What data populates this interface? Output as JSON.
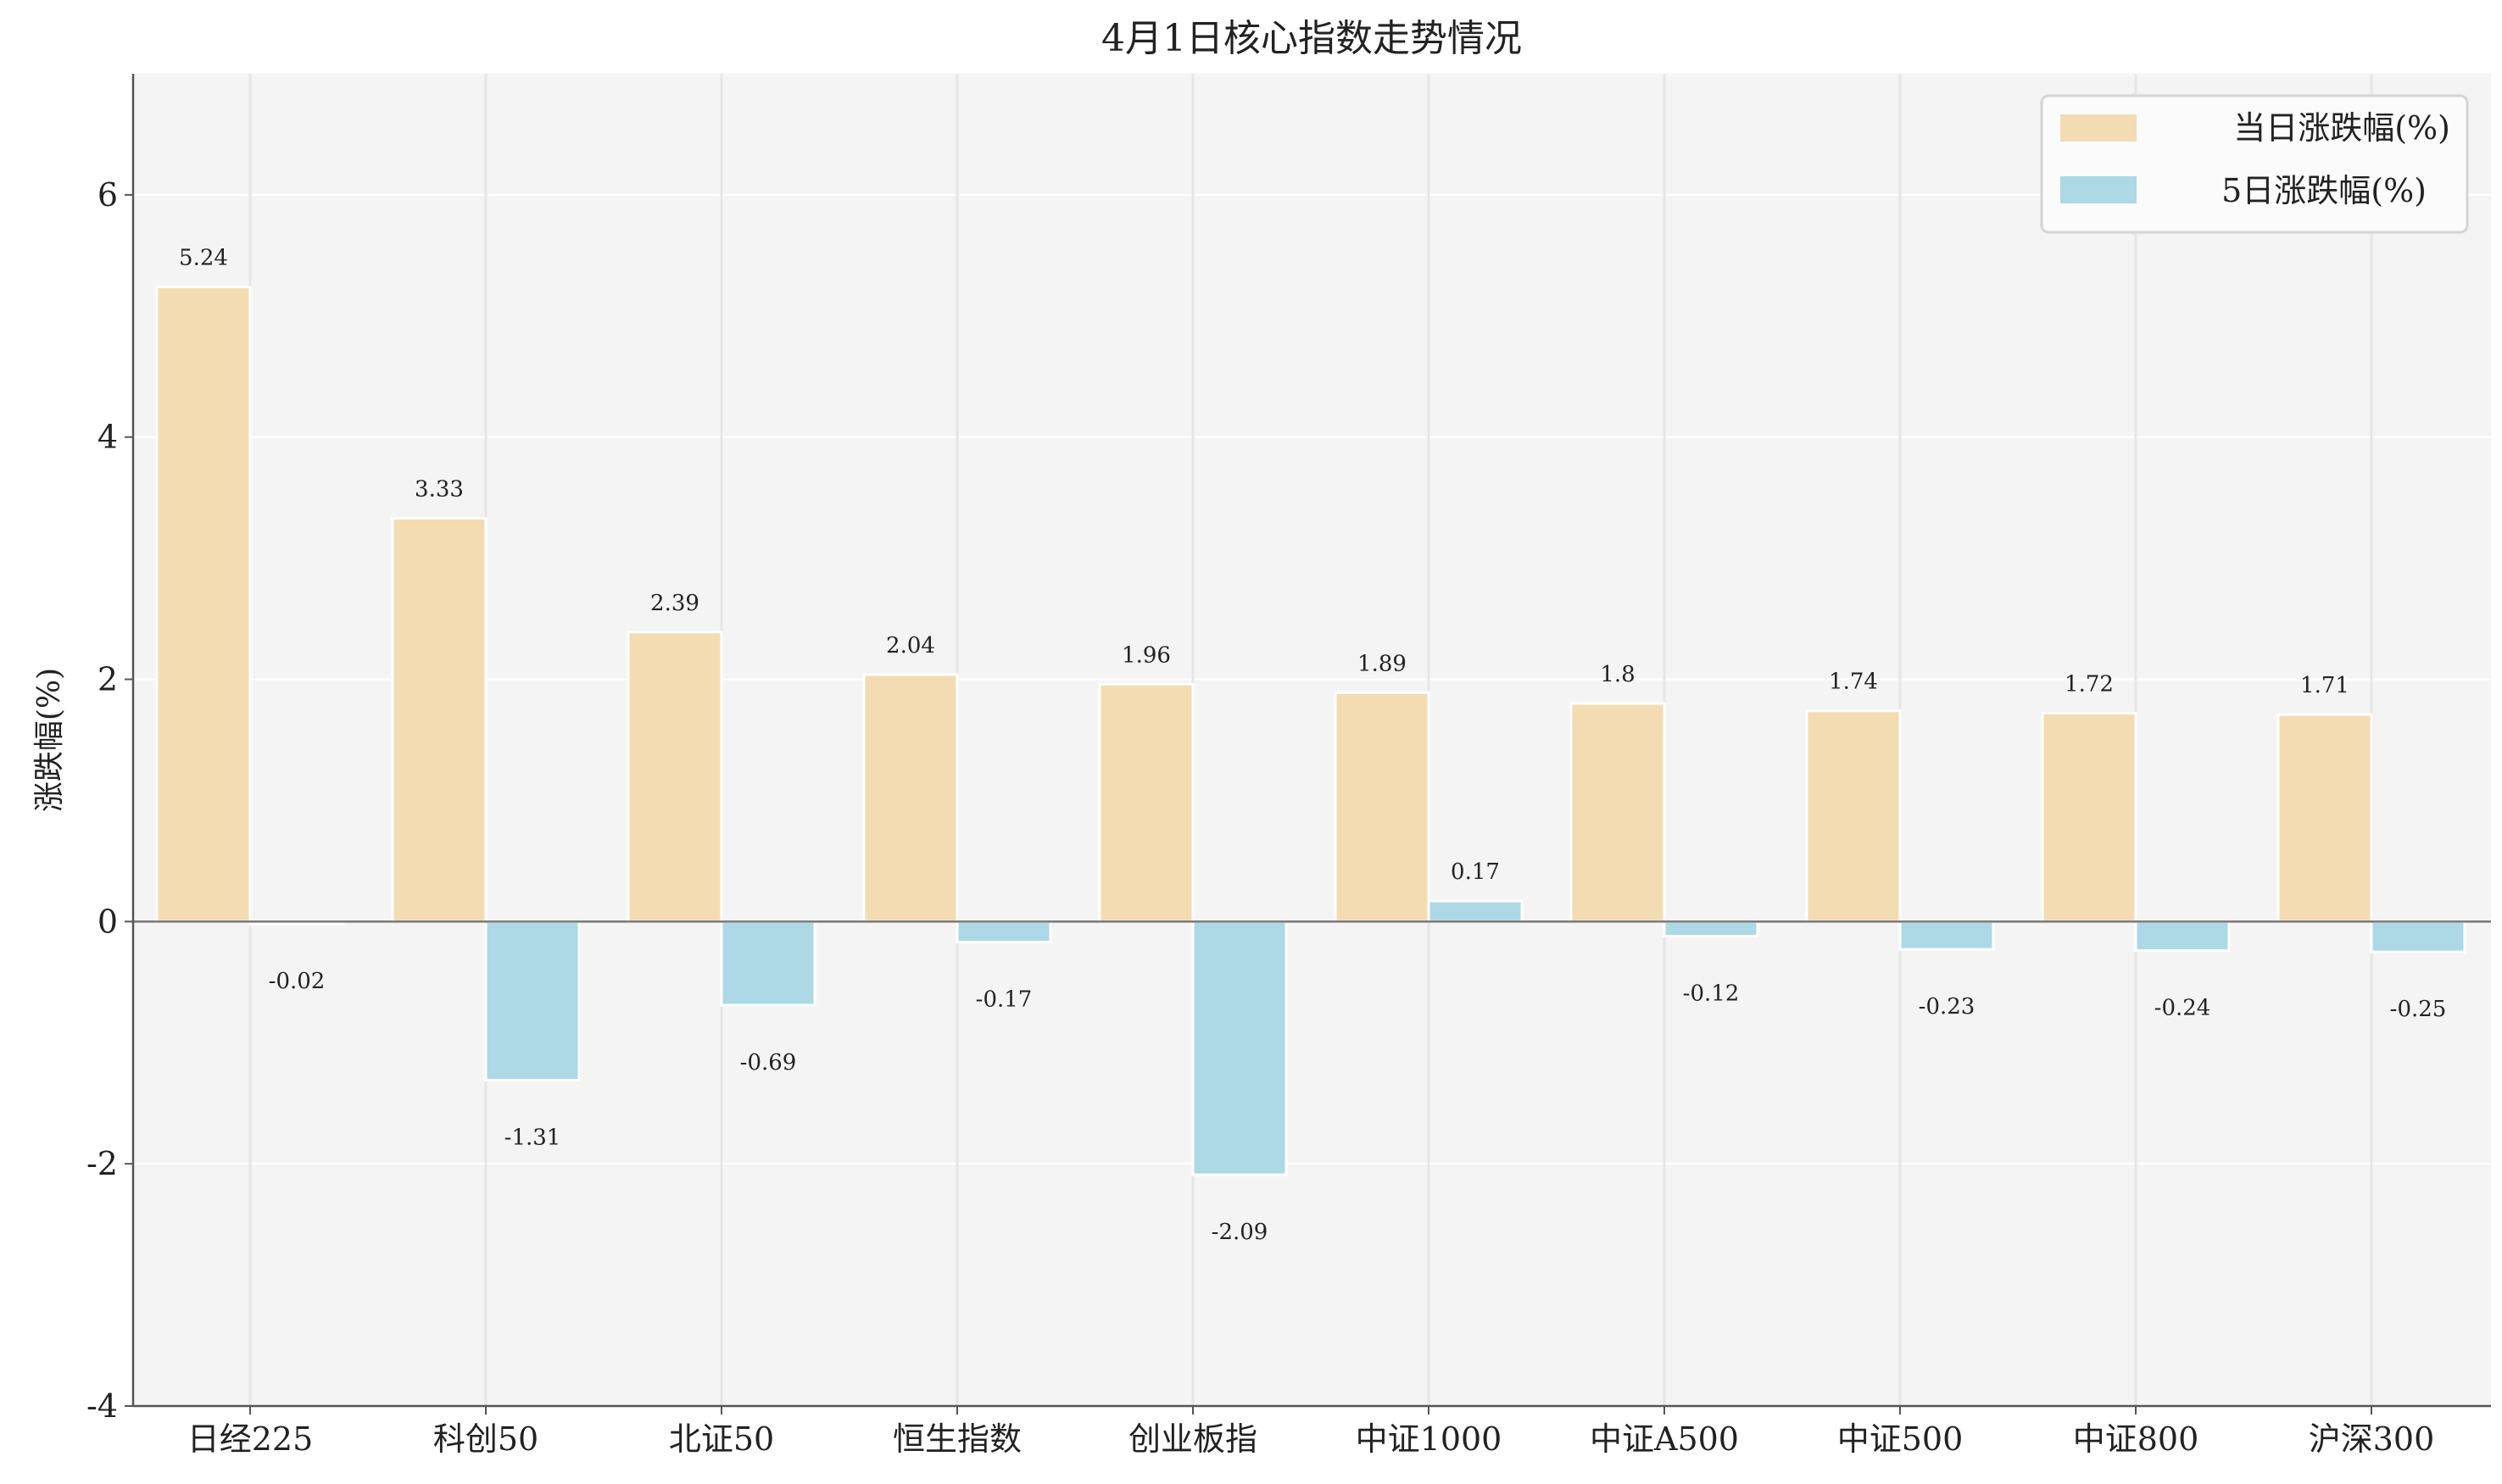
{
  "chart_data": {
    "type": "bar",
    "title": "4月1日核心指数走势情况",
    "xlabel": "",
    "ylabel": "涨跌幅(%)",
    "ylim": [
      -4,
      7
    ],
    "yticks": [
      -4,
      -2,
      0,
      2,
      4,
      6
    ],
    "grid": true,
    "legend_position": "top-right",
    "categories": [
      "日经225",
      "科创50",
      "北证50",
      "恒生指数",
      "创业板指",
      "中证1000",
      "中证A500",
      "中证500",
      "中证800",
      "沪深300"
    ],
    "series": [
      {
        "name": "当日涨跌幅(%)",
        "color": "#f3dcb2",
        "values": [
          5.24,
          3.33,
          2.39,
          2.04,
          1.96,
          1.89,
          1.8,
          1.74,
          1.72,
          1.71
        ]
      },
      {
        "name": "5日涨跌幅(%)",
        "color": "#add8e6",
        "values": [
          -0.02,
          -1.31,
          -0.69,
          -0.17,
          -2.09,
          0.17,
          -0.12,
          -0.23,
          -0.24,
          -0.25
        ]
      }
    ],
    "background_color": "#f4f4f4"
  }
}
